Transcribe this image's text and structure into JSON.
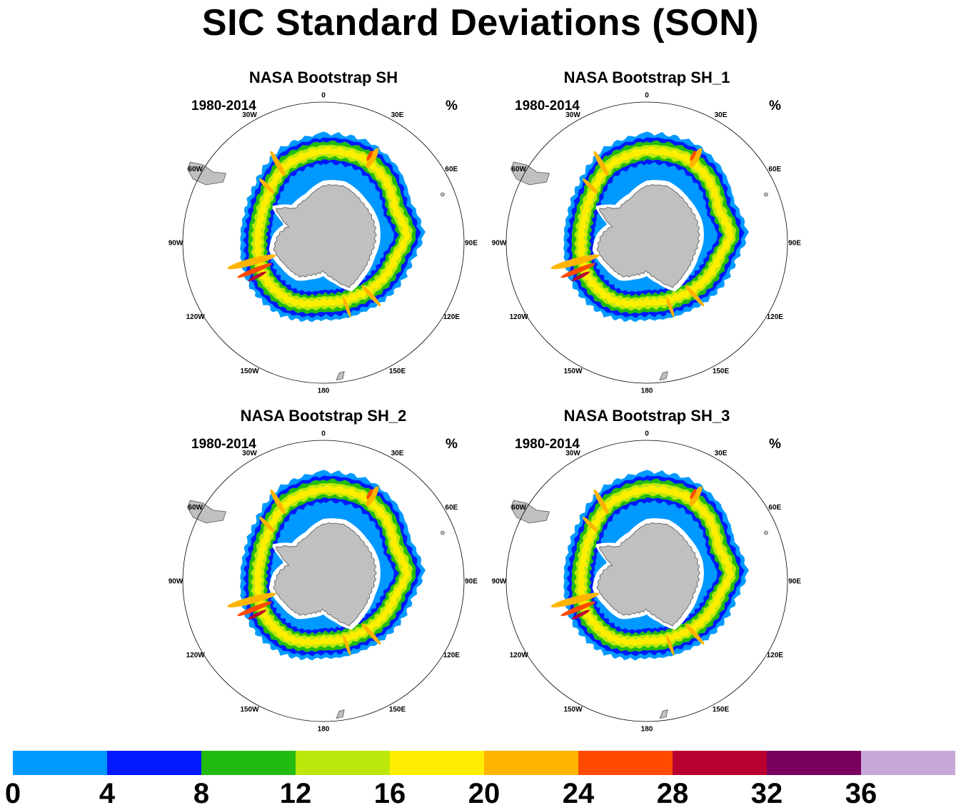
{
  "title": "SIC Standard Deviations (SON)",
  "panels": [
    {
      "title": "NASA Bootstrap SH",
      "years": "1980-2014",
      "units": "%"
    },
    {
      "title": "NASA Bootstrap SH_1",
      "years": "1980-2014",
      "units": "%"
    },
    {
      "title": "NASA Bootstrap SH_2",
      "years": "1980-2014",
      "units": "%"
    },
    {
      "title": "NASA Bootstrap SH_3",
      "years": "1980-2014",
      "units": "%"
    }
  ],
  "longitude_labels": [
    "0",
    "30E",
    "60E",
    "90E",
    "120E",
    "150E",
    "180",
    "150W",
    "120W",
    "90W",
    "60W",
    "30W"
  ],
  "colorbar": {
    "colors": [
      "#0099ff",
      "#0019ff",
      "#22bb11",
      "#bbe80a",
      "#ffee00",
      "#ffb400",
      "#ff4a00",
      "#b80030",
      "#7a0060",
      "#c8a8d8"
    ],
    "tick_labels": [
      "0",
      "4",
      "8",
      "12",
      "16",
      "20",
      "24",
      "28",
      "32",
      "36"
    ]
  },
  "land_color": "#c0c0c0"
}
